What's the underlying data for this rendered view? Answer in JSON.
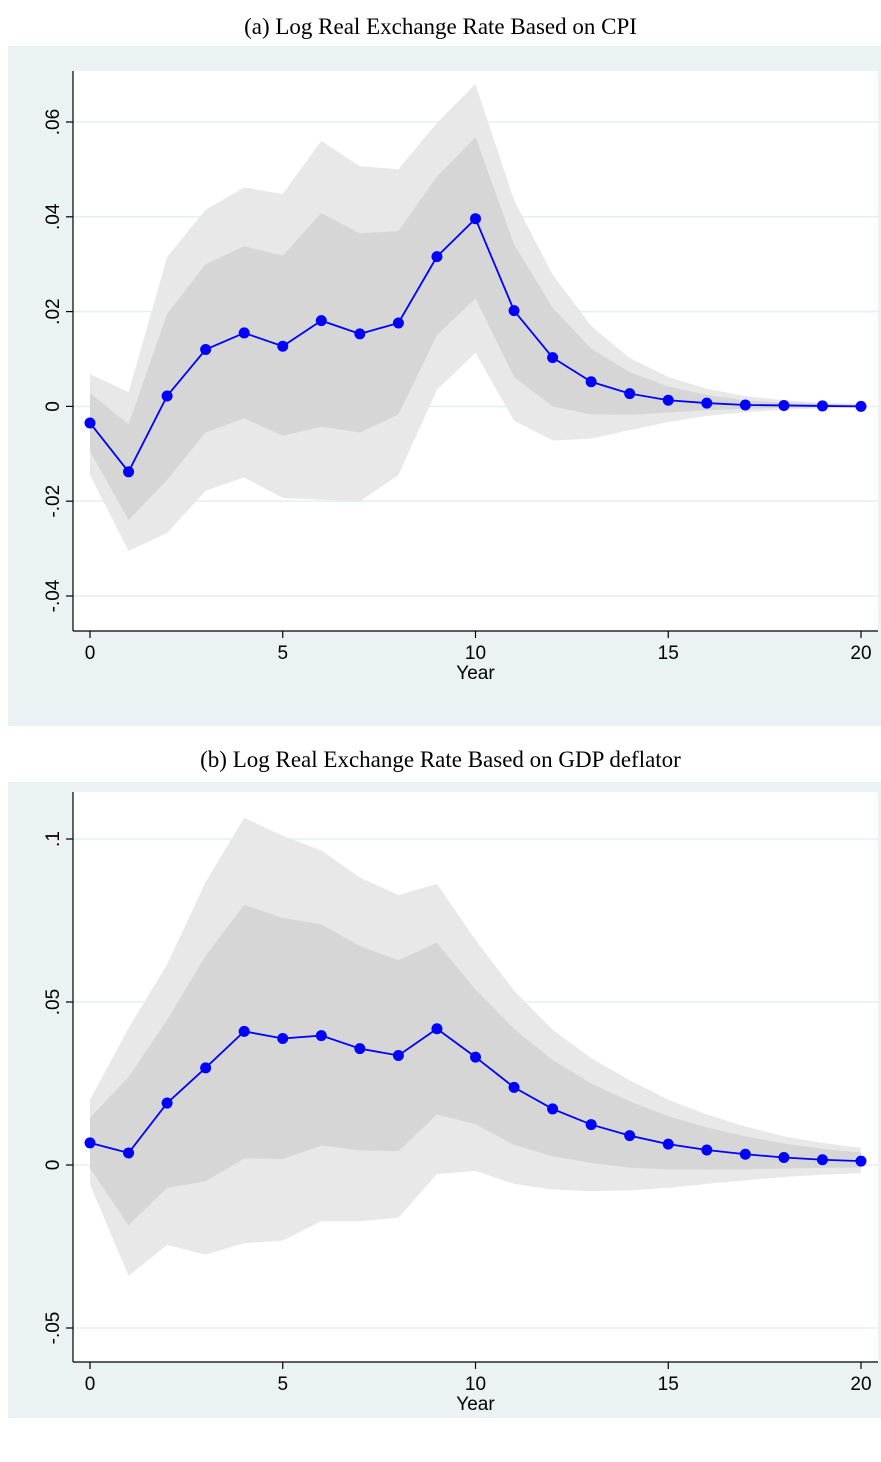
{
  "chart_data": [
    {
      "type": "line",
      "title": "(a)  Log Real Exchange Rate Based on CPI",
      "xlabel": "Year",
      "ylabel": "",
      "xlim": [
        0,
        20
      ],
      "ylim": [
        -0.04,
        0.07
      ],
      "xticks": [
        0,
        5,
        10,
        15,
        20
      ],
      "xtick_labels": [
        "0",
        "5",
        "10",
        "15",
        "20"
      ],
      "yticks": [
        -0.04,
        -0.02,
        0,
        0.02,
        0.04,
        0.06
      ],
      "ytick_labels": [
        "-.04",
        "-.02",
        "0",
        ".02",
        ".04",
        ".06"
      ],
      "grid": "horizontal",
      "x": [
        0,
        1,
        2,
        3,
        4,
        5,
        6,
        7,
        8,
        9,
        10,
        11,
        12,
        13,
        14,
        15,
        16,
        17,
        18,
        19,
        20
      ],
      "series": [
        {
          "values": [
            -0.0035,
            -0.0138,
            0.0022,
            0.012,
            0.0155,
            0.0127,
            0.0181,
            0.0153,
            0.0176,
            0.0316,
            0.0396,
            0.0202,
            0.0103,
            0.0052,
            0.0027,
            0.0013,
            0.0007,
            0.0003,
            0.0002,
            0.0001,
            0.0
          ],
          "color": "#0000ff"
        }
      ],
      "bands": [
        {
          "level": "outer",
          "color": "#e8e8e8",
          "upper": [
            0.0068,
            0.003,
            0.0315,
            0.0415,
            0.0462,
            0.0448,
            0.056,
            0.0507,
            0.05,
            0.0598,
            0.068,
            0.0435,
            0.0278,
            0.017,
            0.0102,
            0.0062,
            0.0037,
            0.0022,
            0.0013,
            0.0008,
            0.0005
          ],
          "lower": [
            -0.0145,
            -0.0305,
            -0.0267,
            -0.0178,
            -0.015,
            -0.0193,
            -0.0197,
            -0.02,
            -0.0145,
            0.0035,
            0.0113,
            -0.003,
            -0.0072,
            -0.0068,
            -0.005,
            -0.0033,
            -0.002,
            -0.0012,
            -0.0007,
            -0.0004,
            -0.0003
          ]
        },
        {
          "level": "inner",
          "color": "#d6d6d6",
          "upper": [
            0.0028,
            -0.0038,
            0.0195,
            0.03,
            0.0338,
            0.0318,
            0.0408,
            0.0365,
            0.037,
            0.0485,
            0.0568,
            0.0342,
            0.0208,
            0.0122,
            0.0072,
            0.0042,
            0.0024,
            0.0013,
            0.0008,
            0.0005,
            0.0003
          ],
          "lower": [
            -0.0095,
            -0.024,
            -0.0155,
            -0.0055,
            -0.0025,
            -0.0062,
            -0.0043,
            -0.0055,
            -0.0017,
            0.015,
            0.0228,
            0.0062,
            0.0,
            -0.0017,
            -0.0018,
            -0.0013,
            -0.0008,
            -0.0005,
            -0.0003,
            -0.0002,
            -0.0001
          ]
        }
      ]
    },
    {
      "type": "line",
      "title": "(b)  Log Real Exchange Rate Based on GDP deflator",
      "xlabel": "Year",
      "ylabel": "",
      "xlim": [
        0,
        20
      ],
      "ylim": [
        -0.05,
        0.11
      ],
      "xticks": [
        0,
        5,
        10,
        15,
        20
      ],
      "xtick_labels": [
        "0",
        "5",
        "10",
        "15",
        "20"
      ],
      "yticks": [
        -0.05,
        0,
        0.05,
        0.1
      ],
      "ytick_labels": [
        "-.05",
        "0",
        ".05",
        ".1"
      ],
      "grid": "horizontal",
      "x": [
        0,
        1,
        2,
        3,
        4,
        5,
        6,
        7,
        8,
        9,
        10,
        11,
        12,
        13,
        14,
        15,
        16,
        17,
        18,
        19,
        20
      ],
      "series": [
        {
          "values": [
            0.0068,
            0.0037,
            0.019,
            0.0298,
            0.041,
            0.0388,
            0.0397,
            0.0357,
            0.0336,
            0.0418,
            0.0331,
            0.0238,
            0.0172,
            0.0124,
            0.009,
            0.0064,
            0.0046,
            0.0033,
            0.0023,
            0.0016,
            0.0012
          ],
          "color": "#0000ff"
        }
      ],
      "bands": [
        {
          "level": "outer",
          "color": "#e8e8e8",
          "upper": [
            0.02,
            0.042,
            0.0615,
            0.0868,
            0.1065,
            0.101,
            0.0965,
            0.0882,
            0.0828,
            0.0862,
            0.069,
            0.0535,
            0.0415,
            0.0328,
            0.026,
            0.02,
            0.0155,
            0.0118,
            0.0088,
            0.0068,
            0.0052
          ],
          "lower": [
            -0.006,
            -0.034,
            -0.0245,
            -0.0275,
            -0.024,
            -0.0232,
            -0.0172,
            -0.0172,
            -0.0162,
            -0.0028,
            -0.0018,
            -0.0058,
            -0.0075,
            -0.008,
            -0.0078,
            -0.007,
            -0.0058,
            -0.0047,
            -0.0037,
            -0.003,
            -0.0025
          ]
        },
        {
          "level": "inner",
          "color": "#d6d6d6",
          "upper": [
            0.0145,
            0.027,
            0.0445,
            0.0642,
            0.0798,
            0.0758,
            0.0738,
            0.0672,
            0.0628,
            0.0682,
            0.0538,
            0.0418,
            0.0322,
            0.025,
            0.0195,
            0.015,
            0.0115,
            0.0088,
            0.0066,
            0.005,
            0.0038
          ],
          "lower": [
            -0.001,
            -0.0185,
            -0.007,
            -0.005,
            0.002,
            0.0018,
            0.006,
            0.0045,
            0.0042,
            0.0155,
            0.0125,
            0.0062,
            0.0027,
            0.0006,
            -0.0008,
            -0.0013,
            -0.0014,
            -0.0013,
            -0.0011,
            -0.0009,
            -0.0008
          ]
        }
      ]
    }
  ]
}
